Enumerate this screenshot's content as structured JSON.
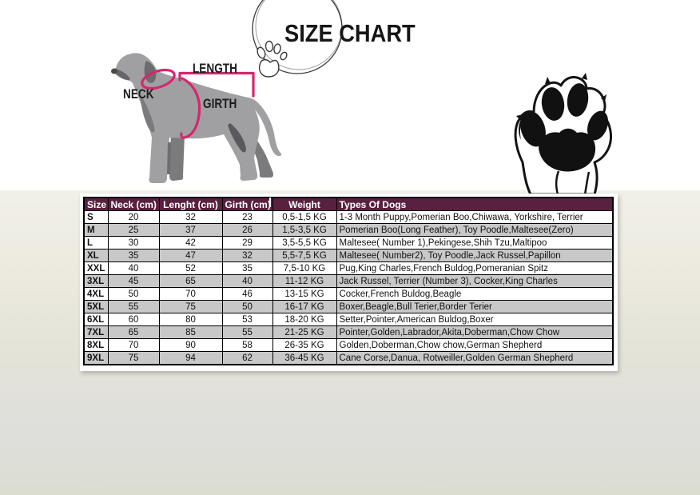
{
  "title": "SIZE CHART",
  "colors": {
    "accent_pink": "#d6266e",
    "header_bg": "#5a2040",
    "row_alt": "#c8c8c8",
    "dog_gray": "#a0a0a3",
    "ink": "#141414"
  },
  "diagram": {
    "neck_label": "NECK",
    "length_label": "LENGTH",
    "girth_label": "GIRTH"
  },
  "icons": {
    "sketch_circle": "hand-drawn-circle",
    "small_paw": "paw-outline",
    "big_paw": "paw-print",
    "dog": "dog-measurement-illustration"
  },
  "table": {
    "headers": [
      "Size",
      "Neck (cm)",
      "Lenght (cm)",
      "Girth (cm)",
      "Weight",
      "Types Of Dogs"
    ],
    "rows": [
      [
        "S",
        "20",
        "32",
        "23",
        "0,5-1,5 KG",
        "1-3 Month Puppy,Pomerian Boo,Chiwawa, Yorkshire, Terrier"
      ],
      [
        "M",
        "25",
        "37",
        "26",
        "1,5-3,5 KG",
        "Pomerian Boo(Long Feather), Toy Poodle,Maltesee(Zero)"
      ],
      [
        "L",
        "30",
        "42",
        "29",
        "3,5-5,5 KG",
        "Maltesee( Number 1),Pekingese,Shih Tzu,Maltipoo"
      ],
      [
        "XL",
        "35",
        "47",
        "32",
        "5,5-7,5 KG",
        "Maltesee( Number2), Toy Poodle,Jack Russel,Papillon"
      ],
      [
        "XXL",
        "40",
        "52",
        "35",
        "7,5-10 KG",
        "Pug,King Charles,French Buldog,Pomeranian Spitz"
      ],
      [
        "3XL",
        "45",
        "65",
        "40",
        "11-12 KG",
        "Jack Russel, Terrier (Number 3), Cocker,King Charles"
      ],
      [
        "4XL",
        "50",
        "70",
        "46",
        "13-15 KG",
        "Cocker,French Buldog,Beagle"
      ],
      [
        "5XL",
        "55",
        "75",
        "50",
        "16-17 KG",
        "Boxer,Beagle,Bull Terier,Border Terier"
      ],
      [
        "6XL",
        "60",
        "80",
        "53",
        "18-20 KG",
        "Setter,Pointer,American Buldog,Boxer"
      ],
      [
        "7XL",
        "65",
        "85",
        "55",
        "21-25 KG",
        "Pointer,Golden,Labrador,Akita,Doberman,Chow Chow"
      ],
      [
        "8XL",
        "70",
        "90",
        "58",
        "26-35 KG",
        "Golden,Doberman,Chow chow,German Shepherd"
      ],
      [
        "9XL",
        "75",
        "94",
        "62",
        "36-45 KG",
        "Cane Corse,Danua, Rotweiller,Golden German Shepherd"
      ]
    ]
  }
}
